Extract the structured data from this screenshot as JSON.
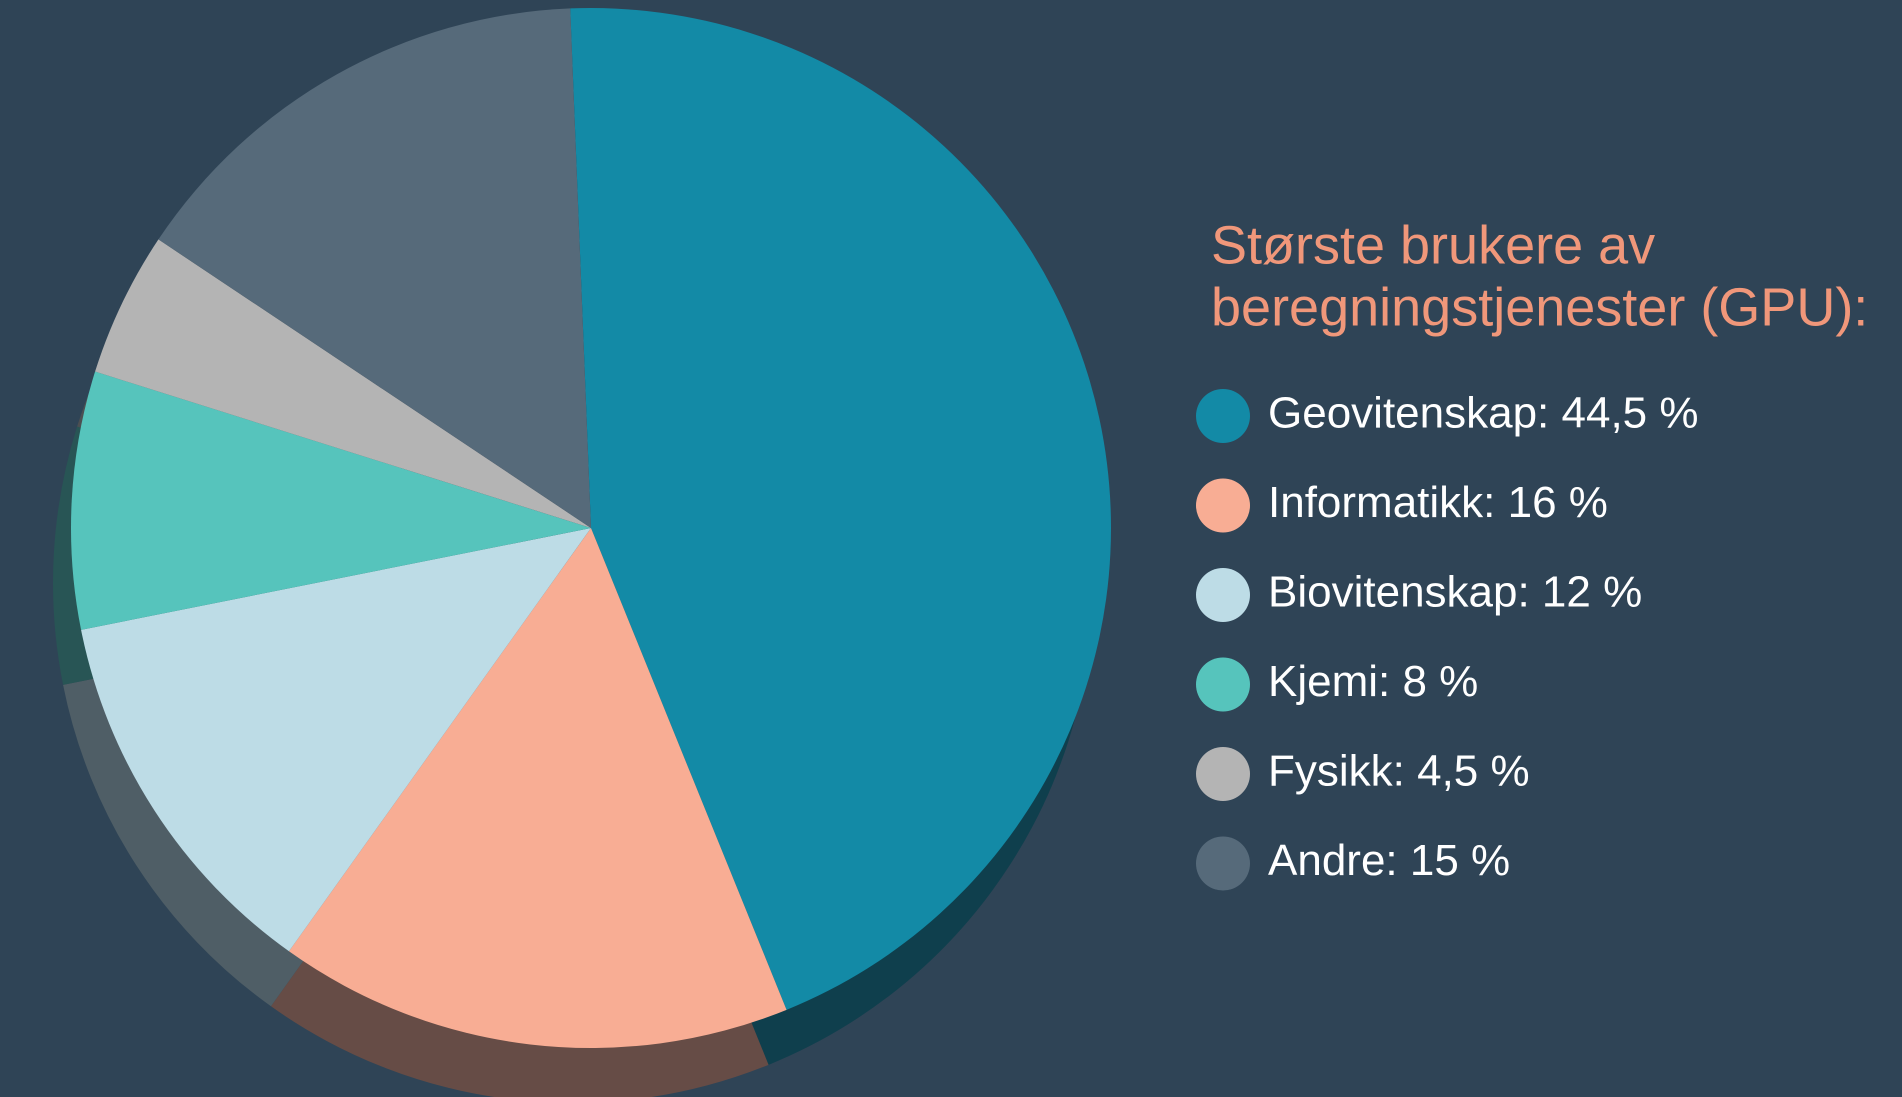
{
  "chart_data": {
    "type": "pie",
    "title": [
      "Største brukere av",
      "beregningstjenester (GPU):"
    ],
    "categories": [
      "Geovitenskap: 44,5 %",
      "Informatikk: 16 %",
      "Biovitenskap: 12 %",
      "Kjemi: 8 %",
      "Fysikk: 4,5 %",
      "Andre: 15 %"
    ],
    "values": [
      44.5,
      16,
      12,
      8,
      4.5,
      15
    ],
    "colors": [
      "#138aa6",
      "#f8ad94",
      "#bddce6",
      "#56c4bc",
      "#b4b4b4",
      "#566a7a"
    ]
  }
}
